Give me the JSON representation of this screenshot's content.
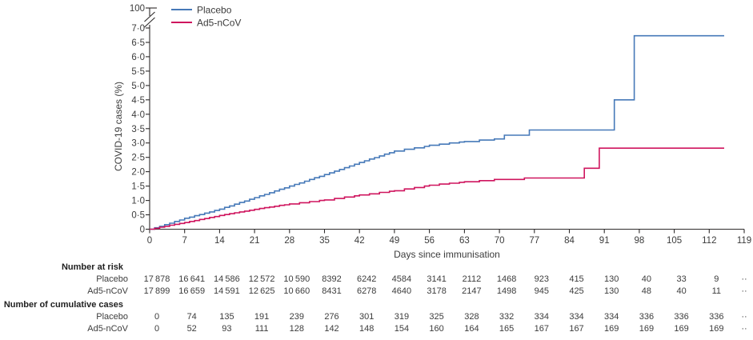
{
  "figure": {
    "colors": {
      "axis": "#2e2b2b",
      "tick_text": "#3c3c3c",
      "header_text": "#1f1f1f",
      "placebo_blue": "#4679b8",
      "ad5_red": "#cf155e"
    }
  },
  "chart_data": {
    "type": "line",
    "subtype": "kaplan-meier-cumulative-incidence-step",
    "title": "",
    "xlabel": "Days since immunisation",
    "ylabel": "COVID-19 cases (%)",
    "xlim": [
      0,
      119
    ],
    "ylim": [
      0,
      7
    ],
    "grid": "off",
    "legend_position": "top-left",
    "x_ticks": [
      0,
      7,
      14,
      21,
      28,
      35,
      42,
      49,
      56,
      63,
      70,
      77,
      84,
      91,
      98,
      105,
      112,
      119
    ],
    "y_tick_values": [
      0,
      0.5,
      1,
      1.5,
      2,
      2.5,
      3,
      3.5,
      4,
      4.5,
      5,
      5.5,
      6,
      6.5,
      7
    ],
    "y_tick_labels": [
      "0",
      "0·5",
      "1·0",
      "1·5",
      "2·0",
      "2·5",
      "3·0",
      "3·5",
      "4·0",
      "4·5",
      "5·0",
      "5·5",
      "6·0",
      "6·5",
      "7·0"
    ],
    "y_axis_break": {
      "upper_label": "100",
      "upper_value": 100
    },
    "series": [
      {
        "name": "Placebo",
        "color": "#4679b8",
        "points": [
          [
            0,
            0
          ],
          [
            1,
            0.05
          ],
          [
            2,
            0.1
          ],
          [
            3,
            0.16
          ],
          [
            4,
            0.21
          ],
          [
            5,
            0.27
          ],
          [
            6,
            0.32
          ],
          [
            7,
            0.38
          ],
          [
            8,
            0.42
          ],
          [
            9,
            0.47
          ],
          [
            10,
            0.51
          ],
          [
            11,
            0.56
          ],
          [
            12,
            0.6
          ],
          [
            13,
            0.65
          ],
          [
            14,
            0.7
          ],
          [
            15,
            0.76
          ],
          [
            16,
            0.81
          ],
          [
            17,
            0.87
          ],
          [
            18,
            0.93
          ],
          [
            19,
            0.98
          ],
          [
            20,
            1.04
          ],
          [
            21,
            1.1
          ],
          [
            22,
            1.16
          ],
          [
            23,
            1.21
          ],
          [
            24,
            1.27
          ],
          [
            25,
            1.33
          ],
          [
            26,
            1.39
          ],
          [
            27,
            1.44
          ],
          [
            28,
            1.5
          ],
          [
            29,
            1.56
          ],
          [
            30,
            1.61
          ],
          [
            31,
            1.67
          ],
          [
            32,
            1.73
          ],
          [
            33,
            1.79
          ],
          [
            34,
            1.84
          ],
          [
            35,
            1.9
          ],
          [
            36,
            1.96
          ],
          [
            37,
            2.02
          ],
          [
            38,
            2.08
          ],
          [
            39,
            2.14
          ],
          [
            40,
            2.2
          ],
          [
            41,
            2.26
          ],
          [
            42,
            2.32
          ],
          [
            43,
            2.38
          ],
          [
            44,
            2.44
          ],
          [
            45,
            2.49
          ],
          [
            46,
            2.55
          ],
          [
            47,
            2.61
          ],
          [
            48,
            2.66
          ],
          [
            49,
            2.72
          ],
          [
            51,
            2.78
          ],
          [
            53,
            2.83
          ],
          [
            55,
            2.88
          ],
          [
            56,
            2.92
          ],
          [
            58,
            2.96
          ],
          [
            60,
            3.0
          ],
          [
            62,
            3.03
          ],
          [
            63,
            3.05
          ],
          [
            66,
            3.1
          ],
          [
            69,
            3.14
          ],
          [
            71,
            3.27
          ],
          [
            76,
            3.45
          ],
          [
            93,
            4.5
          ],
          [
            97,
            6.73
          ],
          [
            115,
            6.73
          ]
        ]
      },
      {
        "name": "Ad5-nCoV",
        "color": "#cf155e",
        "points": [
          [
            0,
            0
          ],
          [
            1,
            0.03
          ],
          [
            2,
            0.07
          ],
          [
            3,
            0.1
          ],
          [
            4,
            0.14
          ],
          [
            5,
            0.17
          ],
          [
            6,
            0.2
          ],
          [
            7,
            0.23
          ],
          [
            8,
            0.27
          ],
          [
            9,
            0.3
          ],
          [
            10,
            0.34
          ],
          [
            11,
            0.37
          ],
          [
            12,
            0.41
          ],
          [
            13,
            0.44
          ],
          [
            14,
            0.48
          ],
          [
            15,
            0.51
          ],
          [
            16,
            0.54
          ],
          [
            17,
            0.57
          ],
          [
            18,
            0.6
          ],
          [
            19,
            0.63
          ],
          [
            20,
            0.66
          ],
          [
            21,
            0.69
          ],
          [
            22,
            0.72
          ],
          [
            23,
            0.75
          ],
          [
            24,
            0.77
          ],
          [
            25,
            0.8
          ],
          [
            26,
            0.83
          ],
          [
            27,
            0.85
          ],
          [
            28,
            0.88
          ],
          [
            30,
            0.92
          ],
          [
            32,
            0.96
          ],
          [
            34,
            1.0
          ],
          [
            35,
            1.02
          ],
          [
            37,
            1.07
          ],
          [
            39,
            1.12
          ],
          [
            41,
            1.16
          ],
          [
            42,
            1.19
          ],
          [
            44,
            1.23
          ],
          [
            46,
            1.28
          ],
          [
            48,
            1.32
          ],
          [
            49,
            1.34
          ],
          [
            51,
            1.4
          ],
          [
            53,
            1.45
          ],
          [
            55,
            1.5
          ],
          [
            56,
            1.53
          ],
          [
            58,
            1.57
          ],
          [
            60,
            1.6
          ],
          [
            62,
            1.63
          ],
          [
            63,
            1.65
          ],
          [
            66,
            1.69
          ],
          [
            69,
            1.73
          ],
          [
            75,
            1.78
          ],
          [
            87,
            2.12
          ],
          [
            90,
            2.82
          ],
          [
            115,
            2.82
          ]
        ]
      }
    ],
    "risk_table": {
      "sections": [
        {
          "header": "Number at risk",
          "rows": [
            {
              "label": "Placebo",
              "values": [
                "17 878",
                "16 641",
                "14 586",
                "12 572",
                "10 590",
                "8392",
                "6242",
                "4584",
                "3141",
                "2112",
                "1468",
                "923",
                "415",
                "130",
                "40",
                "33",
                "9",
                "··"
              ]
            },
            {
              "label": "Ad5-nCoV",
              "values": [
                "17 899",
                "16 659",
                "14 591",
                "12 625",
                "10 660",
                "8431",
                "6278",
                "4640",
                "3178",
                "2147",
                "1498",
                "945",
                "425",
                "130",
                "48",
                "40",
                "11",
                "··"
              ]
            }
          ]
        },
        {
          "header": "Number of cumulative cases",
          "rows": [
            {
              "label": "Placebo",
              "values": [
                "0",
                "74",
                "135",
                "191",
                "239",
                "276",
                "301",
                "319",
                "325",
                "328",
                "332",
                "334",
                "334",
                "334",
                "336",
                "336",
                "336",
                "··"
              ]
            },
            {
              "label": "Ad5-nCoV",
              "values": [
                "0",
                "52",
                "93",
                "111",
                "128",
                "142",
                "148",
                "154",
                "160",
                "164",
                "165",
                "167",
                "167",
                "169",
                "169",
                "169",
                "169",
                "··"
              ]
            }
          ]
        }
      ]
    }
  }
}
